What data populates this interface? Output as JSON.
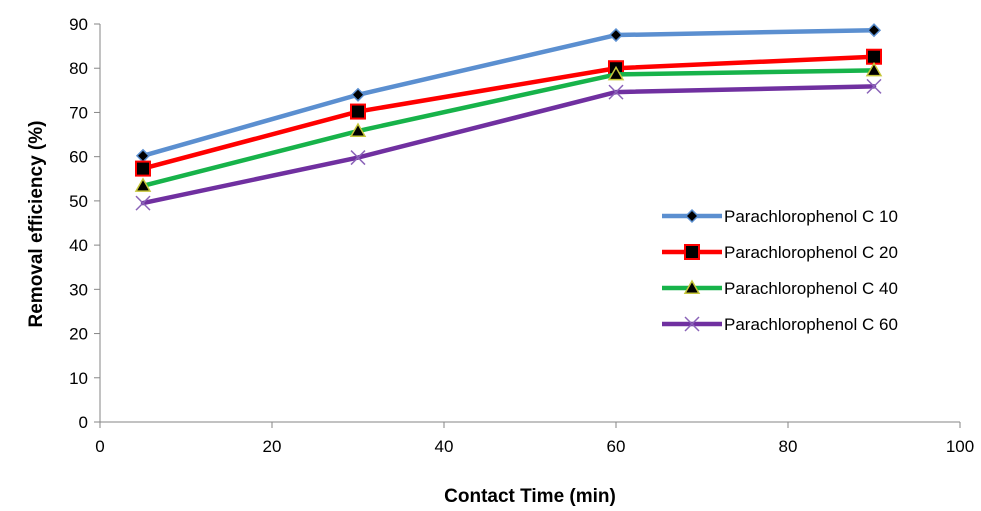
{
  "chart_data": {
    "type": "line",
    "title": "",
    "xlabel": "Contact Time (min)",
    "ylabel": "Removal efficiency (%)",
    "xlim": [
      0,
      100
    ],
    "ylim": [
      0,
      90
    ],
    "x_ticks": [
      0,
      20,
      40,
      60,
      80,
      100
    ],
    "y_ticks": [
      0,
      10,
      20,
      30,
      40,
      50,
      60,
      70,
      80,
      90
    ],
    "grid": false,
    "legend_position": "right",
    "x": [
      5,
      30,
      60,
      90
    ],
    "series": [
      {
        "name": "Parachlorophenol C 10",
        "values": [
          60.2,
          74.0,
          87.5,
          88.6
        ],
        "color": "#5b8fd0",
        "marker": "diamond"
      },
      {
        "name": "Parachlorophenol C 20",
        "values": [
          57.3,
          70.2,
          80.0,
          82.6
        ],
        "color": "#ff0000",
        "marker": "square"
      },
      {
        "name": "Parachlorophenol C 40",
        "values": [
          53.4,
          65.8,
          78.6,
          79.5
        ],
        "color": "#17b34a",
        "marker": "triangle"
      },
      {
        "name": "Parachlorophenol C 60",
        "values": [
          49.5,
          59.8,
          74.6,
          75.9
        ],
        "color": "#7030a0",
        "marker": "x"
      }
    ]
  }
}
